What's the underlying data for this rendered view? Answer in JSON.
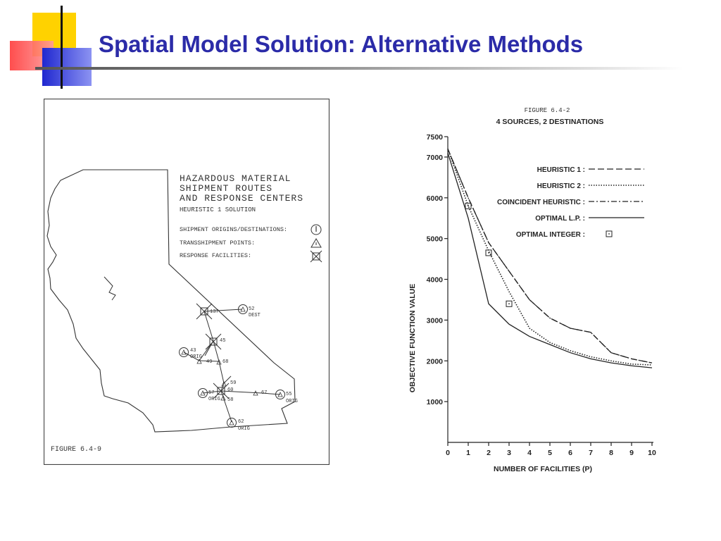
{
  "slide": {
    "title": "Spatial Model Solution: Alternative Methods"
  },
  "map_figure": {
    "title_lines": [
      "HAZARDOUS MATERIAL",
      "SHIPMENT ROUTES",
      "AND RESPONSE CENTERS"
    ],
    "subtitle": "HEURISTIC 1 SOLUTION",
    "legend": [
      {
        "label": "SHIPMENT ORIGINS/DESTINATIONS:",
        "icon": "circle-bar-icon"
      },
      {
        "label": "TRANSSHIPMENT POINTS:",
        "icon": "triangle-icon"
      },
      {
        "label": "RESPONSE FACILITIES:",
        "icon": "cross-box-icon"
      }
    ],
    "caption": "FIGURE 6.4-9",
    "node_labels": {
      "n137": "137",
      "n52": "52",
      "dest": "DEST",
      "n45": "45",
      "n43": "43",
      "orig43": "ORIG",
      "n49": "49",
      "n68": "68",
      "n59": "59",
      "n60": "60",
      "n57": "57",
      "orig57": "ORIG",
      "n58": "58",
      "n67": "67",
      "n55": "55",
      "orig55": "ORIG",
      "n62": "62",
      "orig62": "ORIG"
    }
  },
  "chart_header": {
    "figure": "FIGURE 6.4-2",
    "title": "4 SOURCES, 2 DESTINATIONS"
  },
  "chart_data": {
    "type": "line",
    "title": "4 SOURCES, 2 DESTINATIONS",
    "xlabel": "NUMBER OF FACILITIES (P)",
    "ylabel": "OBJECTIVE FUNCTION VALUE",
    "x": [
      0,
      1,
      2,
      3,
      4,
      5,
      6,
      7,
      8,
      9,
      10
    ],
    "xlim": [
      0,
      10
    ],
    "ylim": [
      0,
      7500
    ],
    "xticks": [
      "0",
      "1",
      "2",
      "3",
      "4",
      "5",
      "6",
      "7",
      "8",
      "9",
      "10"
    ],
    "yticks": [
      {
        "value": 1000,
        "label": "1000"
      },
      {
        "value": 2000,
        "label": "2000"
      },
      {
        "value": 3000,
        "label": "3000"
      },
      {
        "value": 4000,
        "label": "4000"
      },
      {
        "value": 5000,
        "label": "5000"
      },
      {
        "value": 6000,
        "label": "6000"
      },
      {
        "value": 7000,
        "label": "7000"
      },
      {
        "value": 7500,
        "label": "7500"
      }
    ],
    "series": [
      {
        "name": "HEURISTIC 1 :",
        "style": "dashed",
        "values": [
          7200,
          6000,
          4900,
          4200,
          3500,
          3050,
          2800,
          2700,
          2200,
          2050,
          1950
        ]
      },
      {
        "name": "HEURISTIC 2 :",
        "style": "dotted",
        "values": [
          7200,
          5800,
          4700,
          3700,
          2800,
          2450,
          2250,
          2100,
          2000,
          1920,
          1900
        ]
      },
      {
        "name": "COINCIDENT HEURISTIC :",
        "style": "dashdot",
        "values": [
          7200,
          6000,
          4900,
          4200,
          3500,
          3050,
          2800,
          2700,
          2200,
          2050,
          1950
        ]
      },
      {
        "name": "OPTIMAL L.P. :",
        "style": "solid",
        "values": [
          7100,
          5500,
          3400,
          2900,
          2600,
          2400,
          2200,
          2050,
          1950,
          1880,
          1830
        ]
      },
      {
        "name": "OPTIMAL INTEGER :",
        "style": "points",
        "x": [
          1,
          2,
          3
        ],
        "values": [
          5800,
          4650,
          3400
        ]
      }
    ],
    "legend_position": "top-right",
    "grid": false
  },
  "colors": {
    "title": "#2b2ba8",
    "deco_yellow": "#ffd200",
    "deco_red": "#ff4a4a",
    "deco_blue": "#2d35d8"
  }
}
